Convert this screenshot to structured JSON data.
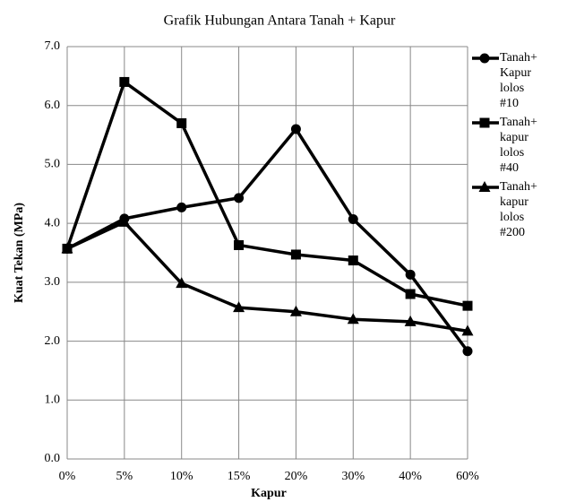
{
  "chart_data": {
    "type": "line",
    "title": "Grafik Hubungan Antara Tanah + Kapur",
    "x_label": "Kapur",
    "y_label": "Kuat Tekan (MPa)",
    "categories": [
      "0%",
      "5%",
      "10%",
      "15%",
      "20%",
      "30%",
      "40%",
      "60%"
    ],
    "series": [
      {
        "name": "Tanah+ Kapur lolos #10",
        "color": "#000000",
        "marker": "circle",
        "values": [
          3.57,
          4.08,
          4.27,
          4.43,
          5.6,
          4.07,
          3.13,
          1.83
        ]
      },
      {
        "name": "Tanah+ kapur lolos #40",
        "color": "#000000",
        "marker": "square",
        "values": [
          3.57,
          6.4,
          5.7,
          3.63,
          3.47,
          3.37,
          2.8,
          2.6
        ]
      },
      {
        "name": "Tanah+ kapur lolos #200",
        "color": "#000000",
        "marker": "triangle",
        "values": [
          3.57,
          4.02,
          2.98,
          2.57,
          2.5,
          2.37,
          2.33,
          2.17
        ]
      }
    ],
    "ylim": [
      0,
      7
    ],
    "yticks": [
      {
        "value": 0,
        "label": "0.0"
      },
      {
        "value": 1,
        "label": "1.0"
      },
      {
        "value": 2,
        "label": "2.0"
      },
      {
        "value": 3,
        "label": "3.0"
      },
      {
        "value": 4,
        "label": "4.0"
      },
      {
        "value": 5,
        "label": "5.0"
      },
      {
        "value": 6,
        "label": "6.0"
      },
      {
        "value": 7,
        "label": "7.0"
      }
    ],
    "grid": true,
    "legend": "right"
  }
}
